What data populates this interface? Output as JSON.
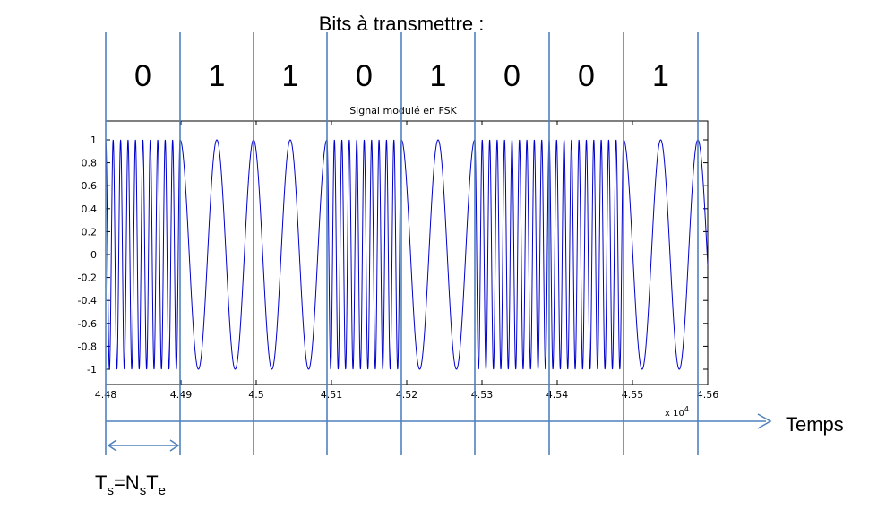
{
  "header": {
    "title": "Bits à transmettre :"
  },
  "bits": [
    "0",
    "1",
    "1",
    "0",
    "1",
    "0",
    "0",
    "1"
  ],
  "time_axis": {
    "label": "Temps"
  },
  "symbol_period": {
    "T": "T",
    "s1": "s",
    "eq": "=N",
    "s2": "s",
    "T2": "T",
    "e": "e"
  },
  "colors": {
    "guide": "#4f81bd",
    "signal": "#0000cc",
    "frame": "#000000"
  },
  "chart_data": {
    "type": "line",
    "title": "Signal modulé en FSK",
    "xlim": [
      44800,
      45600
    ],
    "ylim": [
      -1,
      1
    ],
    "x_ticks": [
      "4.48",
      "4.49",
      "4.5",
      "4.51",
      "4.52",
      "4.53",
      "4.54",
      "4.55",
      "4.56"
    ],
    "x_multiplier": "x 10",
    "x_multiplier_exp": "4",
    "y_ticks": [
      "1",
      "0.8",
      "0.6",
      "0.4",
      "0.2",
      "0",
      "-0.2",
      "-0.4",
      "-0.6",
      "-0.8",
      "-1"
    ],
    "series": [
      {
        "waveform": "cosine",
        "amplitude": 1,
        "cycles_per_bit_0": 10,
        "cycles_per_bit_1": 2
      }
    ]
  }
}
